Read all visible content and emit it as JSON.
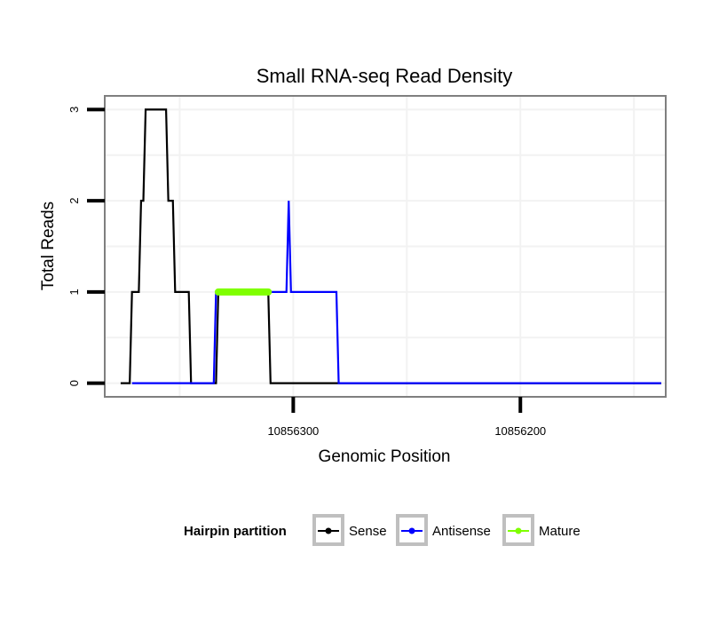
{
  "chart_data": {
    "type": "line",
    "title": "Small RNA-seq Read Density",
    "xlabel": "Genomic Position",
    "ylabel": "Total Reads",
    "x_reversed": true,
    "xlim": [
      10856383,
      10856136
    ],
    "ylim": [
      -0.15,
      3.15
    ],
    "x_ticks": [
      10856300,
      10856200
    ],
    "x_tick_labels": [
      "10856300",
      "10856200"
    ],
    "y_ticks": [
      0,
      1,
      2,
      3
    ],
    "y_tick_labels": [
      "0",
      "1",
      "2",
      "3"
    ],
    "grid": true,
    "legend": {
      "title": "Hairpin partition",
      "position": "bottom",
      "entries": [
        {
          "name": "Sense",
          "color": "#000000"
        },
        {
          "name": "Antisense",
          "color": "#0000ff"
        },
        {
          "name": "Mature",
          "color": "#7fff00"
        }
      ]
    },
    "series": [
      {
        "name": "Sense",
        "color": "#000000",
        "points": [
          [
            10856376,
            0
          ],
          [
            10856372,
            0
          ],
          [
            10856371,
            1
          ],
          [
            10856368,
            1
          ],
          [
            10856367,
            2
          ],
          [
            10856366,
            2
          ],
          [
            10856365,
            3
          ],
          [
            10856356,
            3
          ],
          [
            10856355,
            2
          ],
          [
            10856353,
            2
          ],
          [
            10856352,
            1
          ],
          [
            10856346,
            1
          ],
          [
            10856345,
            0
          ],
          [
            10856334,
            0
          ],
          [
            10856333,
            1
          ],
          [
            10856311,
            1
          ],
          [
            10856310,
            0
          ],
          [
            10856138,
            0
          ]
        ]
      },
      {
        "name": "Antisense",
        "color": "#0000ff",
        "points": [
          [
            10856371,
            0
          ],
          [
            10856335,
            0
          ],
          [
            10856334,
            1
          ],
          [
            10856303,
            1
          ],
          [
            10856302,
            2
          ],
          [
            10856301,
            1
          ],
          [
            10856281,
            1
          ],
          [
            10856280,
            0
          ],
          [
            10856138,
            0
          ]
        ]
      },
      {
        "name": "Mature",
        "color": "#7fff00",
        "points": [
          [
            10856333,
            1
          ],
          [
            10856311,
            1
          ]
        ]
      }
    ]
  }
}
